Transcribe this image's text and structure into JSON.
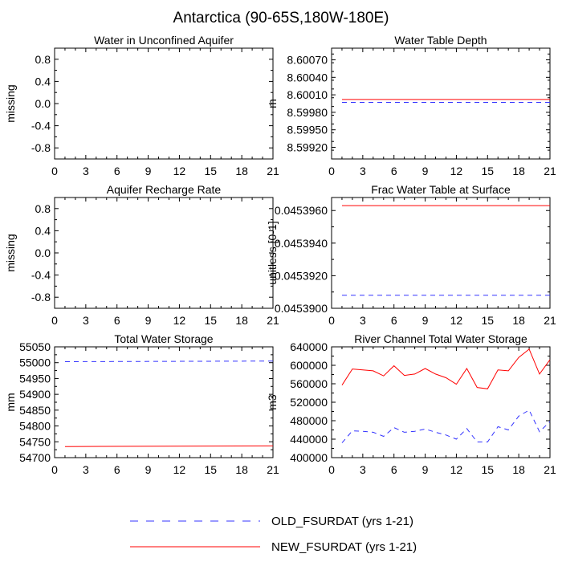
{
  "title": "Antarctica (90-65S,180W-180E)",
  "colors": {
    "old": "#3333ff",
    "new": "#ff0000",
    "axis": "#000000"
  },
  "legend": {
    "old_label": "OLD_FSURDAT (yrs 1-21)",
    "new_label": "NEW_FSURDAT (yrs 1-21)"
  },
  "chart_data": [
    {
      "type": "line",
      "title": "Water in Unconfined Aquifer",
      "xlabel": "",
      "ylabel": "missing",
      "xlim": [
        0,
        21
      ],
      "ylim": [
        -1.0,
        1.0
      ],
      "xticks": [
        0,
        3,
        6,
        9,
        12,
        15,
        18,
        21
      ],
      "yticks": [
        0.8,
        0.4,
        0.0,
        -0.4,
        -0.8
      ],
      "ytick_labels": [
        "0.8",
        "0.4",
        "0.0",
        "-0.4",
        "-0.8"
      ],
      "series": []
    },
    {
      "type": "line",
      "title": "Water Table Depth",
      "xlabel": "",
      "ylabel": "m",
      "xlim": [
        0,
        21
      ],
      "ylim": [
        8.599,
        8.6009
      ],
      "xticks": [
        0,
        3,
        6,
        9,
        12,
        15,
        18,
        21
      ],
      "yticks": [
        8.6007,
        8.6004,
        8.6001,
        8.5998,
        8.5995,
        8.5992
      ],
      "ytick_labels": [
        "8.60070",
        "8.60040",
        "8.60010",
        "8.59980",
        "8.59950",
        "8.59920"
      ],
      "series": [
        {
          "name": "OLD_FSURDAT (yrs 1-21)",
          "style": "dashed",
          "x": [
            1,
            21
          ],
          "y": [
            8.59997,
            8.59997
          ]
        },
        {
          "name": "NEW_FSURDAT (yrs 1-21)",
          "style": "solid",
          "x": [
            1,
            21
          ],
          "y": [
            8.60002,
            8.60002
          ]
        }
      ]
    },
    {
      "type": "line",
      "title": "Aquifer Recharge Rate",
      "xlabel": "",
      "ylabel": "missing",
      "xlim": [
        0,
        21
      ],
      "ylim": [
        -1.0,
        1.0
      ],
      "xticks": [
        0,
        3,
        6,
        9,
        12,
        15,
        18,
        21
      ],
      "yticks": [
        0.8,
        0.4,
        0.0,
        -0.4,
        -0.8
      ],
      "ytick_labels": [
        "0.8",
        "0.4",
        "0.0",
        "-0.4",
        "-0.8"
      ],
      "series": []
    },
    {
      "type": "line",
      "title": "Frac Water Table at Surface",
      "xlabel": "",
      "ylabel": "unitless [0-1]",
      "xlim": [
        0,
        21
      ],
      "ylim": [
        0.04539,
        0.0453968
      ],
      "xticks": [
        0,
        3,
        6,
        9,
        12,
        15,
        18,
        21
      ],
      "yticks": [
        0.045396,
        0.045394,
        0.045392,
        0.04539
      ],
      "ytick_labels": [
        "0.0453960",
        "0.0453940",
        "0.0453920",
        "0.0453900"
      ],
      "series": [
        {
          "name": "OLD_FSURDAT (yrs 1-21)",
          "style": "dashed",
          "x": [
            1,
            21
          ],
          "y": [
            0.0453908,
            0.0453908
          ]
        },
        {
          "name": "NEW_FSURDAT (yrs 1-21)",
          "style": "solid",
          "x": [
            1,
            21
          ],
          "y": [
            0.0453963,
            0.0453963
          ]
        }
      ]
    },
    {
      "type": "line",
      "title": "Total Water Storage",
      "xlabel": "",
      "ylabel": "mm",
      "xlim": [
        0,
        21
      ],
      "ylim": [
        54700,
        55050
      ],
      "xticks": [
        0,
        3,
        6,
        9,
        12,
        15,
        18,
        21
      ],
      "yticks": [
        55050,
        55000,
        54950,
        54900,
        54850,
        54800,
        54750,
        54700
      ],
      "ytick_labels": [
        "55050",
        "55000",
        "54950",
        "54900",
        "54850",
        "54800",
        "54750",
        "54700"
      ],
      "series": [
        {
          "name": "OLD_FSURDAT (yrs 1-21)",
          "style": "dashed",
          "x": [
            1,
            21
          ],
          "y": [
            55003,
            55005
          ]
        },
        {
          "name": "NEW_FSURDAT (yrs 1-21)",
          "style": "solid",
          "x": [
            1,
            21
          ],
          "y": [
            54735,
            54737
          ]
        }
      ]
    },
    {
      "type": "line",
      "title": "River Channel Total Water Storage",
      "xlabel": "",
      "ylabel": "m3",
      "xlim": [
        0,
        21
      ],
      "ylim": [
        400000,
        640000
      ],
      "xticks": [
        0,
        3,
        6,
        9,
        12,
        15,
        18,
        21
      ],
      "yticks": [
        640000,
        600000,
        560000,
        520000,
        480000,
        440000,
        400000
      ],
      "ytick_labels": [
        "640000",
        "600000",
        "560000",
        "520000",
        "480000",
        "440000",
        "400000"
      ],
      "series": [
        {
          "name": "OLD_FSURDAT (yrs 1-21)",
          "style": "dashed",
          "x": [
            1,
            2,
            3,
            4,
            5,
            6,
            7,
            8,
            9,
            10,
            11,
            12,
            13,
            14,
            15,
            16,
            17,
            18,
            19,
            20,
            21
          ],
          "y": [
            432000,
            458000,
            457000,
            455000,
            446000,
            465000,
            455000,
            457000,
            462000,
            455000,
            449000,
            440000,
            463000,
            434000,
            434000,
            467000,
            460000,
            490000,
            503000,
            456000,
            478000
          ]
        },
        {
          "name": "NEW_FSURDAT (yrs 1-21)",
          "style": "solid",
          "x": [
            1,
            2,
            3,
            4,
            5,
            6,
            7,
            8,
            9,
            10,
            11,
            12,
            13,
            14,
            15,
            16,
            17,
            18,
            19,
            20,
            21
          ],
          "y": [
            557000,
            592000,
            590000,
            588000,
            577000,
            599000,
            578000,
            581000,
            593000,
            581000,
            573000,
            559000,
            593000,
            552000,
            549000,
            590000,
            588000,
            617000,
            635000,
            581000,
            612000
          ]
        }
      ]
    }
  ]
}
